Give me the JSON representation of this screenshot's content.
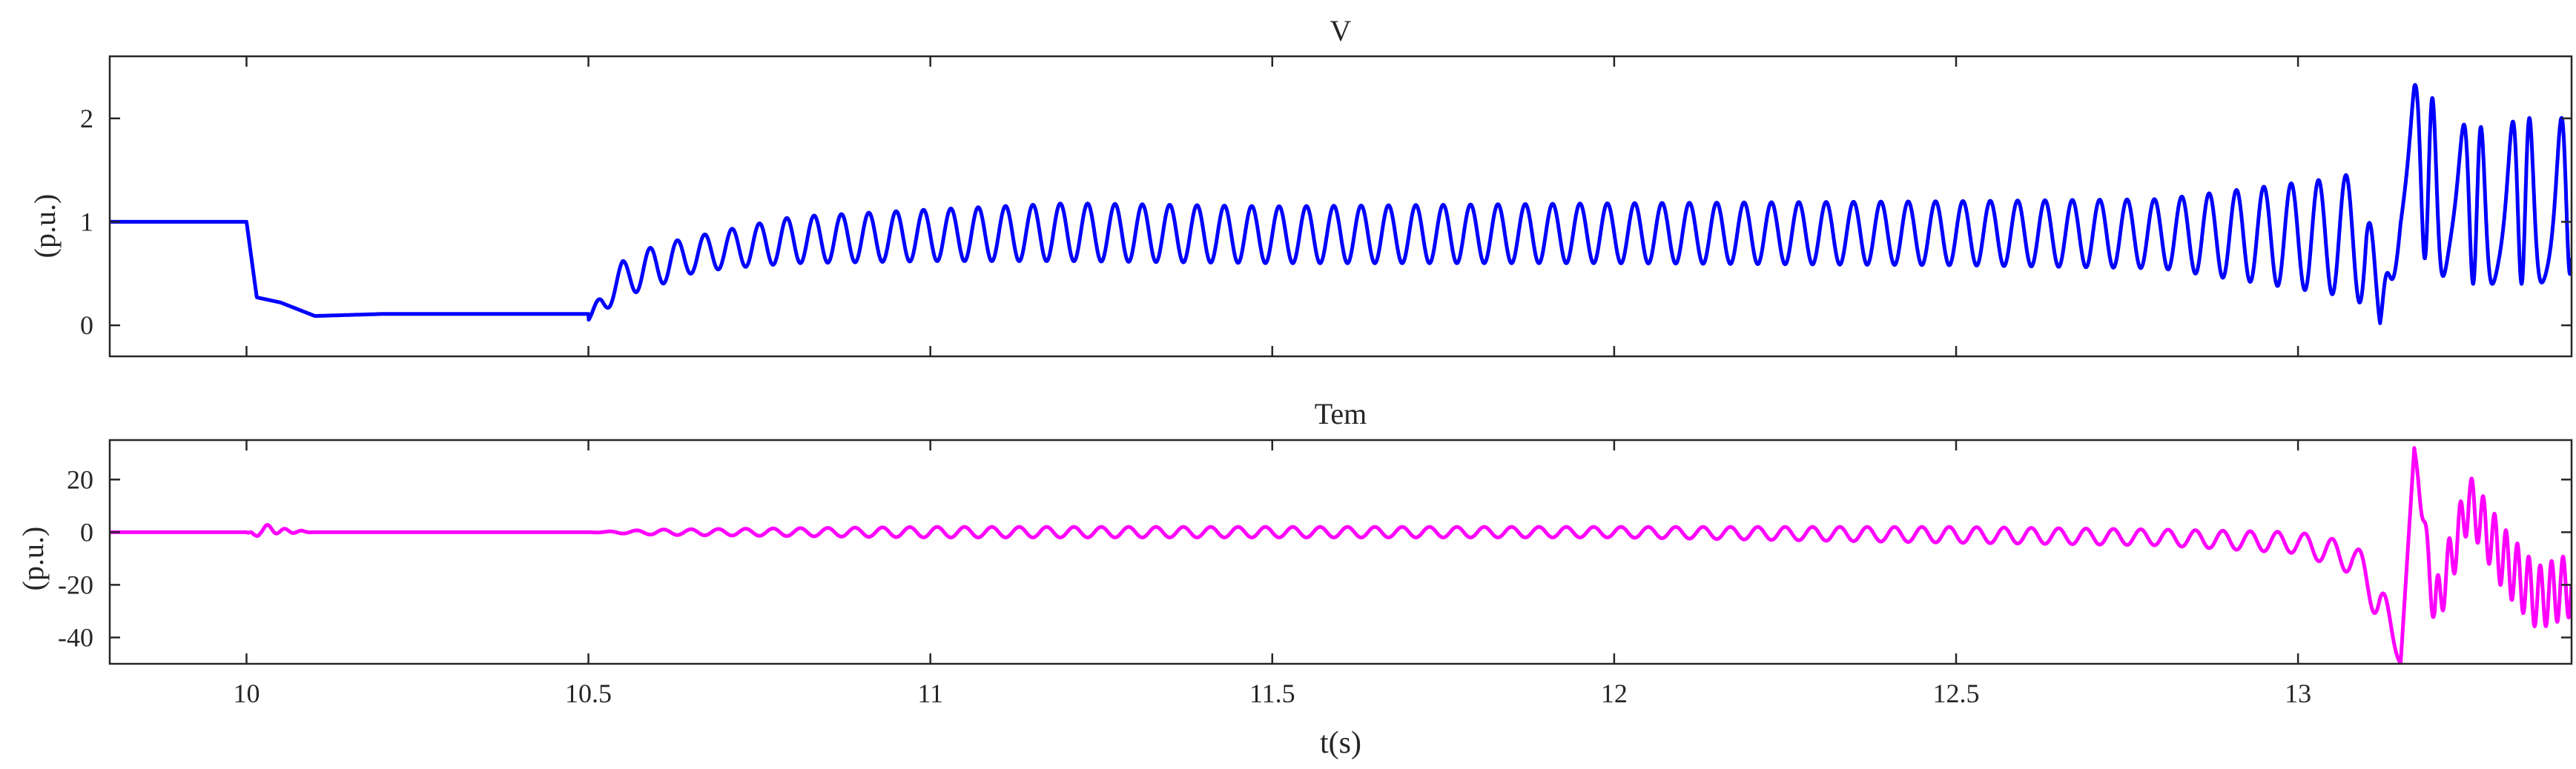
{
  "chart_data": [
    {
      "type": "line",
      "title": "V",
      "ylabel": "(p.u.)",
      "xlabel": "",
      "xlim": [
        9.8,
        13.4
      ],
      "ylim": [
        -0.3,
        2.6
      ],
      "xticks": [
        10,
        10.5,
        11,
        11.5,
        12,
        12.5,
        13
      ],
      "xtick_labels": [
        "",
        "",
        "",
        "",
        "",
        "",
        ""
      ],
      "yticks": [
        0,
        1,
        2
      ],
      "ytick_labels": [
        "0",
        "1",
        "2"
      ],
      "grid": false,
      "series": [
        {
          "color": "#0000ff",
          "x": [
            9.8,
            10.0,
            10.015,
            10.05,
            10.1,
            10.2,
            10.3,
            10.4,
            10.5,
            10.5,
            10.52,
            10.55,
            10.6,
            10.65,
            10.7,
            10.8,
            11.0,
            11.2,
            11.5,
            12.0,
            12.5,
            12.8,
            12.9,
            13.0,
            13.05,
            13.1,
            13.12,
            13.15,
            13.17,
            13.2,
            13.25,
            13.3,
            13.35,
            13.4
          ],
          "y": [
            1.0,
            1.0,
            0.27,
            0.22,
            0.09,
            0.11,
            0.11,
            0.11,
            0.11,
            0.05,
            0.35,
            0.62,
            0.78,
            0.85,
            0.92,
            1.05,
            1.12,
            1.18,
            1.15,
            1.18,
            1.2,
            1.22,
            1.3,
            1.38,
            1.42,
            1.5,
            0.02,
            1.78,
            2.33,
            2.18,
            1.9,
            1.95,
            2.02,
            2.0
          ],
          "y_min_envelope": [
            1.0,
            1.0,
            0.27,
            0.22,
            0.09,
            0.11,
            0.11,
            0.11,
            0.11,
            0.05,
            0.12,
            0.28,
            0.38,
            0.5,
            0.55,
            0.6,
            0.62,
            0.62,
            0.6,
            0.6,
            0.58,
            0.55,
            0.45,
            0.35,
            0.3,
            0.2,
            0.02,
            0.7,
            0.8,
            0.5,
            0.4,
            0.4,
            0.4,
            0.5
          ]
        }
      ]
    },
    {
      "type": "line",
      "title": "Tem",
      "ylabel": "(p.u.)",
      "xlabel": "t(s)",
      "xlim": [
        9.8,
        13.4
      ],
      "ylim": [
        -50,
        35
      ],
      "xticks": [
        10,
        10.5,
        11,
        11.5,
        12,
        12.5,
        13
      ],
      "xtick_labels": [
        "10",
        "10.5",
        "11",
        "11.5",
        "12",
        "12.5",
        "13"
      ],
      "yticks": [
        -40,
        -20,
        0,
        20
      ],
      "ytick_labels": [
        "-40",
        "-20",
        "0",
        "20"
      ],
      "grid": false,
      "series": [
        {
          "color": "#ff00ff",
          "x": [
            9.8,
            10.0,
            10.01,
            10.02,
            10.05,
            10.1,
            10.5,
            10.6,
            11.0,
            11.5,
            12.0,
            12.5,
            12.8,
            13.0,
            13.08,
            13.12,
            13.15,
            13.17,
            13.2,
            13.25,
            13.3,
            13.35,
            13.4
          ],
          "y": [
            0,
            0,
            -2,
            1.5,
            0.5,
            0,
            0,
            0,
            0,
            0,
            0,
            -1,
            -2,
            -4,
            -10,
            -25,
            -50,
            32,
            -30,
            12,
            -10,
            -25,
            -20
          ],
          "oscillation_amplitude": [
            0,
            0,
            2,
            2,
            1,
            0,
            0,
            1,
            2,
            2,
            2,
            3,
            3,
            4,
            6,
            10,
            0,
            0,
            10,
            10,
            12,
            12,
            12
          ]
        }
      ]
    }
  ]
}
